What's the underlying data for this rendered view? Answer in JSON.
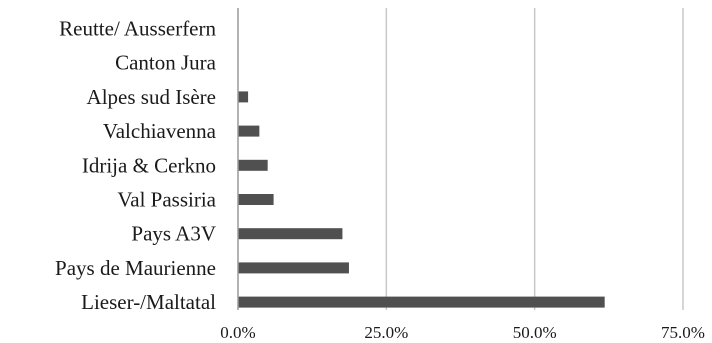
{
  "chart_data": {
    "type": "bar",
    "orientation": "horizontal",
    "categories": [
      "Reutte/ Ausserfern",
      "Canton Jura",
      "Alpes sud Isère",
      "Valchiavenna",
      "Idrija & Cerkno",
      "Val Passiria",
      "Pays A3V",
      "Pays de Maurienne",
      "Lieser-/Maltatal"
    ],
    "values": [
      0.0,
      0.0,
      0.017,
      0.036,
      0.05,
      0.06,
      0.176,
      0.187,
      0.618
    ],
    "xlim": [
      0,
      0.75
    ],
    "x_ticks": [
      0,
      0.25,
      0.5,
      0.75
    ],
    "x_tick_labels": [
      "0.0%",
      "25.0%",
      "50.0%",
      "75.0%"
    ],
    "title": "",
    "xlabel": "",
    "ylabel": "",
    "grid": "vertical",
    "legend": "none",
    "colors": {
      "bar": "#505050",
      "grid": "#c8c8c8",
      "axis": "#9a9a9a",
      "text": "#1a1a1a"
    }
  }
}
